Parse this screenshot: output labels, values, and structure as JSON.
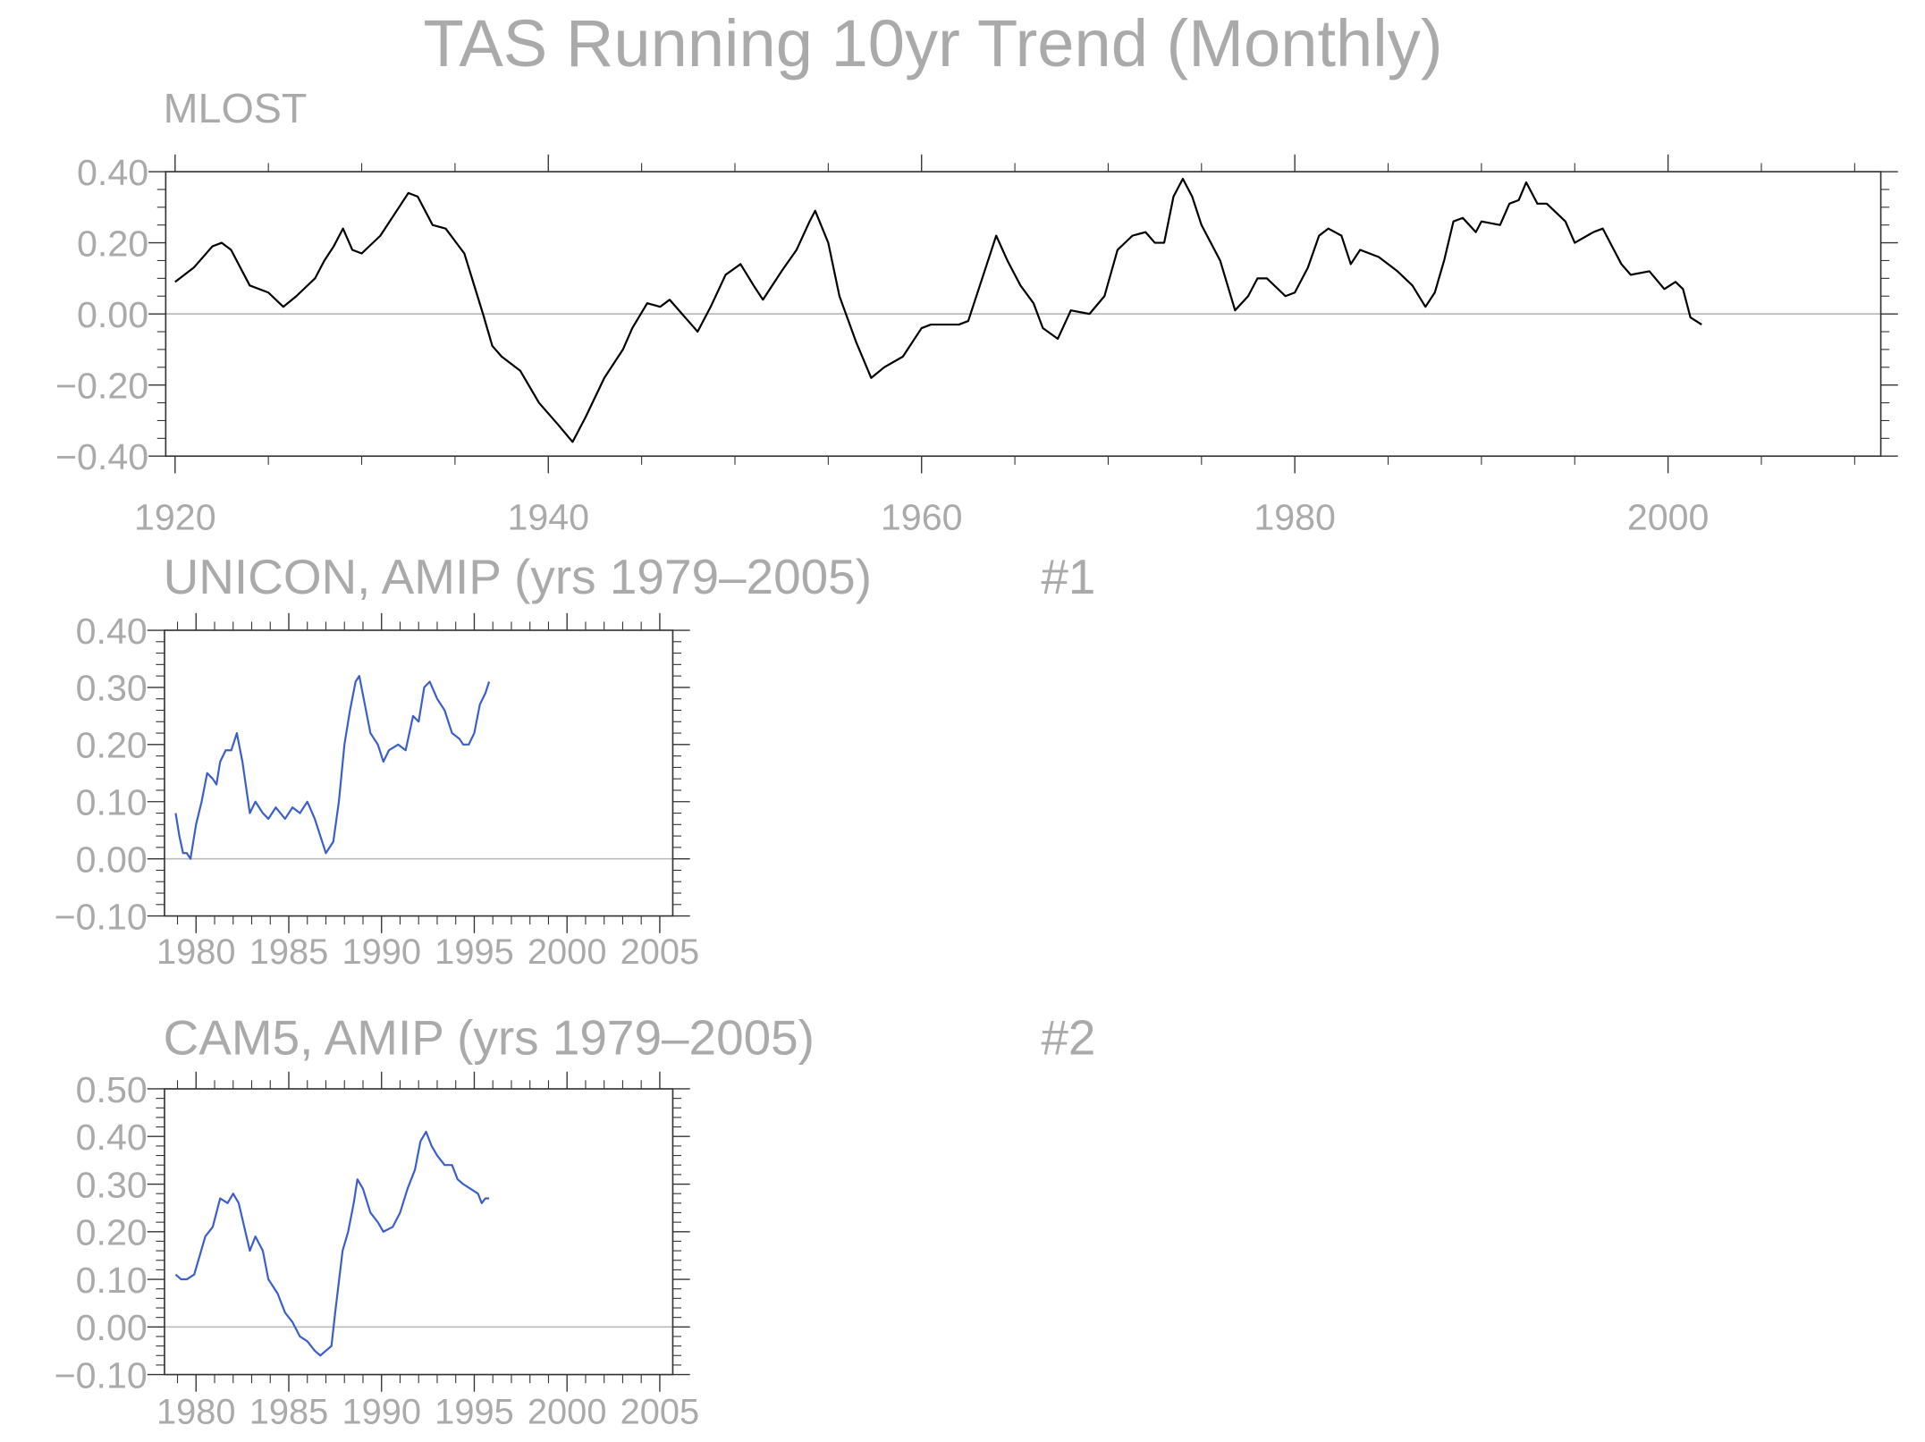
{
  "title": "TAS Running 10yr Trend (Monthly)",
  "chart_data": [
    {
      "type": "line",
      "title": "MLOST",
      "color": "#000000",
      "zero_line": true,
      "xlim": [
        1919.5,
        2011.4
      ],
      "xticks": [
        1920,
        1940,
        1960,
        1980,
        2000
      ],
      "ylim": [
        -0.4,
        0.4
      ],
      "yticks": [
        {
          "value": -0.4,
          "label": "−0.40"
        },
        {
          "value": -0.2,
          "label": "−0.20"
        },
        {
          "value": 0,
          "label": "0.00"
        },
        {
          "value": 0.2,
          "label": "0.20"
        },
        {
          "value": 0.4,
          "label": "0.40"
        }
      ],
      "x": [
        1920.0,
        1921,
        1922,
        1922.5,
        1923,
        1924,
        1925,
        1925.8,
        1926.5,
        1927.5,
        1928,
        1928.5,
        1929,
        1929.5,
        1930,
        1931,
        1932,
        1932.5,
        1933,
        1933.8,
        1934.5,
        1935.5,
        1936.5,
        1937,
        1937.5,
        1938.5,
        1939.5,
        1940.5,
        1941.3,
        1942,
        1943,
        1944,
        1944.5,
        1945.3,
        1946,
        1946.5,
        1947.5,
        1948,
        1948.7,
        1949.5,
        1950.3,
        1951,
        1951.5,
        1952.5,
        1953.3,
        1954,
        1954.3,
        1955,
        1955.6,
        1956.5,
        1957.3,
        1958,
        1959,
        1960,
        1960.5,
        1962,
        1962.5,
        1963.5,
        1964,
        1964.6,
        1965.3,
        1966,
        1966.5,
        1967.3,
        1968,
        1969,
        1969.8,
        1970.5,
        1971.3,
        1972,
        1972.5,
        1973,
        1973.5,
        1974,
        1974.5,
        1975,
        1976,
        1976.8,
        1977.5,
        1978,
        1978.5,
        1979.5,
        1980,
        1980.7,
        1981.3,
        1981.8,
        1982.5,
        1983,
        1983.5,
        1984.5,
        1985.5,
        1986.3,
        1987,
        1987.5,
        1988,
        1988.5,
        1989,
        1989.7,
        1990,
        1991,
        1991.5,
        1992,
        1992.4,
        1993,
        1993.5,
        1994.5,
        1995,
        1996,
        1996.5,
        1997.5,
        1998,
        1999,
        1999.8,
        2000.4,
        2000.8,
        2001.2,
        2001.5,
        2001.8
      ],
      "values": [
        0.09,
        0.13,
        0.19,
        0.2,
        0.18,
        0.08,
        0.06,
        0.02,
        0.05,
        0.1,
        0.15,
        0.19,
        0.24,
        0.18,
        0.17,
        0.22,
        0.3,
        0.34,
        0.33,
        0.25,
        0.24,
        0.17,
        0.0,
        -0.09,
        -0.12,
        -0.16,
        -0.25,
        -0.31,
        -0.36,
        -0.29,
        -0.18,
        -0.1,
        -0.04,
        0.03,
        0.02,
        0.04,
        -0.02,
        -0.05,
        0.02,
        0.11,
        0.14,
        0.08,
        0.04,
        0.12,
        0.18,
        0.26,
        0.29,
        0.2,
        0.05,
        -0.08,
        -0.18,
        -0.15,
        -0.12,
        -0.04,
        -0.03,
        -0.03,
        -0.02,
        0.14,
        0.22,
        0.15,
        0.08,
        0.03,
        -0.04,
        -0.07,
        0.01,
        0.0,
        0.05,
        0.18,
        0.22,
        0.23,
        0.2,
        0.2,
        0.33,
        0.38,
        0.33,
        0.25,
        0.15,
        0.01,
        0.05,
        0.1,
        0.1,
        0.05,
        0.06,
        0.13,
        0.22,
        0.24,
        0.22,
        0.14,
        0.18,
        0.16,
        0.12,
        0.08,
        0.02,
        0.06,
        0.15,
        0.26,
        0.27,
        0.23,
        0.26,
        0.25,
        0.31,
        0.32,
        0.37,
        0.31,
        0.31,
        0.26,
        0.2,
        0.23,
        0.24,
        0.14,
        0.11,
        0.12,
        0.07,
        0.09,
        0.07,
        -0.01,
        -0.02,
        -0.03
      ]
    },
    {
      "type": "line",
      "title": "UNICON, AMIP (yrs 1979–2005)",
      "annotation": "#1",
      "color": "#3a5fcd",
      "zero_line": true,
      "xlim": [
        1978.3,
        2005.7
      ],
      "xticks": [
        1980,
        1985,
        1990,
        1995,
        2000,
        2005
      ],
      "ylim": [
        -0.1,
        0.4
      ],
      "yticks": [
        {
          "value": -0.1,
          "label": "−0.10"
        },
        {
          "value": 0,
          "label": "0.00"
        },
        {
          "value": 0.1,
          "label": "0.10"
        },
        {
          "value": 0.2,
          "label": "0.20"
        },
        {
          "value": 0.3,
          "label": "0.30"
        },
        {
          "value": 0.4,
          "label": "0.40"
        }
      ],
      "x": [
        1978.9,
        1979.1,
        1979.3,
        1979.5,
        1979.7,
        1980.0,
        1980.3,
        1980.6,
        1980.9,
        1981.1,
        1981.3,
        1981.6,
        1981.9,
        1982.2,
        1982.5,
        1982.9,
        1983.2,
        1983.6,
        1983.9,
        1984.3,
        1984.8,
        1985.2,
        1985.6,
        1986.0,
        1986.4,
        1986.8,
        1987.0,
        1987.4,
        1987.7,
        1988.0,
        1988.3,
        1988.6,
        1988.8,
        1989.1,
        1989.4,
        1989.8,
        1990.1,
        1990.4,
        1990.9,
        1991.3,
        1991.7,
        1992.0,
        1992.3,
        1992.6,
        1993.0,
        1993.4,
        1993.8,
        1994.2,
        1994.4,
        1994.7,
        1995.0,
        1995.3,
        1995.6,
        1995.8
      ],
      "values": [
        0.08,
        0.04,
        0.01,
        0.01,
        0.0,
        0.06,
        0.1,
        0.15,
        0.14,
        0.13,
        0.17,
        0.19,
        0.19,
        0.22,
        0.17,
        0.08,
        0.1,
        0.08,
        0.07,
        0.09,
        0.07,
        0.09,
        0.08,
        0.1,
        0.07,
        0.03,
        0.01,
        0.03,
        0.1,
        0.2,
        0.26,
        0.31,
        0.32,
        0.27,
        0.22,
        0.2,
        0.17,
        0.19,
        0.2,
        0.19,
        0.25,
        0.24,
        0.3,
        0.31,
        0.28,
        0.26,
        0.22,
        0.21,
        0.2,
        0.2,
        0.22,
        0.27,
        0.29,
        0.31
      ]
    },
    {
      "type": "line",
      "title": "CAM5, AMIP (yrs 1979–2005)",
      "annotation": "#2",
      "color": "#3a5fcd",
      "zero_line": true,
      "xlim": [
        1978.3,
        2005.7
      ],
      "xticks": [
        1980,
        1985,
        1990,
        1995,
        2000,
        2005
      ],
      "ylim": [
        -0.1,
        0.5
      ],
      "yticks": [
        {
          "value": -0.1,
          "label": "−0.10"
        },
        {
          "value": 0,
          "label": "0.00"
        },
        {
          "value": 0.1,
          "label": "0.10"
        },
        {
          "value": 0.2,
          "label": "0.20"
        },
        {
          "value": 0.3,
          "label": "0.30"
        },
        {
          "value": 0.4,
          "label": "0.40"
        },
        {
          "value": 0.5,
          "label": "0.50"
        }
      ],
      "x": [
        1978.9,
        1979.2,
        1979.5,
        1979.9,
        1980.2,
        1980.5,
        1980.9,
        1981.3,
        1981.7,
        1982.0,
        1982.3,
        1982.6,
        1982.9,
        1983.2,
        1983.6,
        1983.9,
        1984.4,
        1984.8,
        1985.2,
        1985.6,
        1986.0,
        1986.4,
        1986.7,
        1987.0,
        1987.3,
        1987.5,
        1987.9,
        1988.2,
        1988.5,
        1988.7,
        1989.0,
        1989.4,
        1989.8,
        1990.1,
        1990.6,
        1991.0,
        1991.4,
        1991.8,
        1992.1,
        1992.4,
        1992.7,
        1993.0,
        1993.4,
        1993.8,
        1994.1,
        1994.4,
        1994.8,
        1995.2,
        1995.4,
        1995.6,
        1995.8
      ],
      "values": [
        0.11,
        0.1,
        0.1,
        0.11,
        0.15,
        0.19,
        0.21,
        0.27,
        0.26,
        0.28,
        0.26,
        0.21,
        0.16,
        0.19,
        0.16,
        0.1,
        0.07,
        0.03,
        0.01,
        -0.02,
        -0.03,
        -0.05,
        -0.06,
        -0.05,
        -0.04,
        0.03,
        0.16,
        0.2,
        0.26,
        0.31,
        0.29,
        0.24,
        0.22,
        0.2,
        0.21,
        0.24,
        0.29,
        0.33,
        0.39,
        0.41,
        0.38,
        0.36,
        0.34,
        0.34,
        0.31,
        0.3,
        0.29,
        0.28,
        0.26,
        0.27,
        0.27
      ]
    }
  ]
}
